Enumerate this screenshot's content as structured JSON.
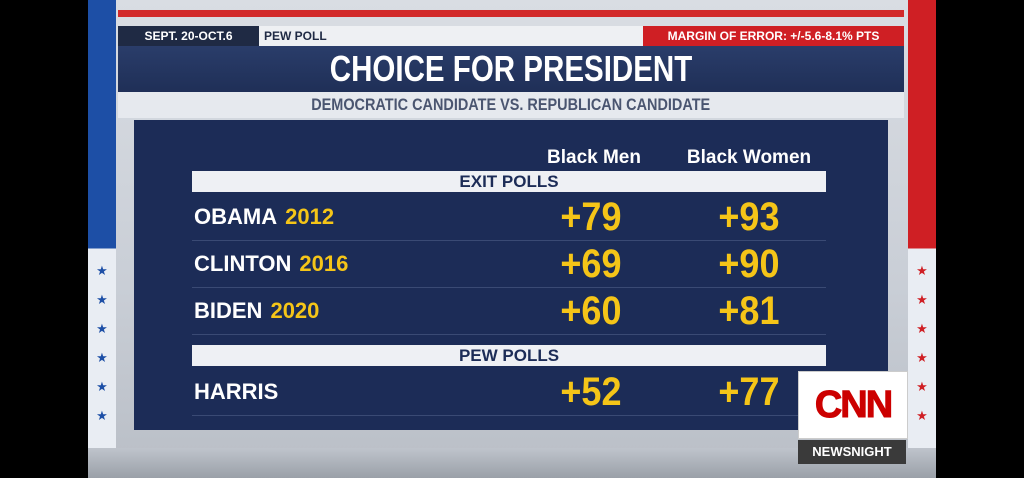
{
  "top": {
    "dates": "SEPT. 20-OCT.6",
    "source": "PEW POLL",
    "margin_of_error": "MARGIN OF ERROR: +/-5.6-8.1% PTS"
  },
  "title": "CHOICE FOR PRESIDENT",
  "subtitle": "DEMOCRATIC CANDIDATE VS. REPUBLICAN CANDIDATE",
  "columns": [
    "Black Men",
    "Black Women"
  ],
  "sections": [
    {
      "header": "EXIT POLLS",
      "rows": [
        {
          "name": "OBAMA",
          "year": "2012",
          "men": "+79",
          "women": "+93"
        },
        {
          "name": "CLINTON",
          "year": "2016",
          "men": "+69",
          "women": "+90"
        },
        {
          "name": "BIDEN",
          "year": "2020",
          "men": "+60",
          "women": "+81"
        }
      ]
    },
    {
      "header": "PEW POLLS",
      "rows": [
        {
          "name": "HARRIS",
          "year": "",
          "men": "+52",
          "women": "+77"
        }
      ]
    }
  ],
  "branding": {
    "logo_text": "CNN",
    "show_name": "NEWSNIGHT"
  },
  "decor": {
    "star_glyph": "★",
    "blue": "#1d4fa6",
    "red": "#cf1f24",
    "navy": "#1c2c57",
    "gold": "#f5c518"
  }
}
